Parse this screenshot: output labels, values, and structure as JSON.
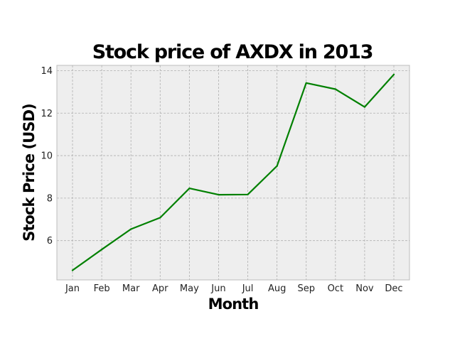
{
  "chart_data": {
    "type": "line",
    "title": "Stock price of AXDX in 2013",
    "xlabel": "Month",
    "ylabel": "Stock Price (USD)",
    "categories": [
      "Jan",
      "Feb",
      "Mar",
      "Apr",
      "May",
      "Jun",
      "Jul",
      "Aug",
      "Sep",
      "Oct",
      "Nov",
      "Dec"
    ],
    "series": [
      {
        "values": [
          4.6,
          5.58,
          6.54,
          7.08,
          8.46,
          8.16,
          8.17,
          9.51,
          13.42,
          13.13,
          12.29,
          13.82
        ],
        "color": "#008000"
      }
    ],
    "ylim": [
      4.15,
      14.25
    ],
    "yticks": [
      6,
      8,
      10,
      12,
      14
    ],
    "ytick_labels": [
      "6",
      "8",
      "10",
      "12",
      "14"
    ],
    "grid": true,
    "legend": "none",
    "style": {
      "plot_background": "#eeeeee",
      "grid_color": "#b0b0b0",
      "spine_color": "#bcbcbc"
    }
  }
}
